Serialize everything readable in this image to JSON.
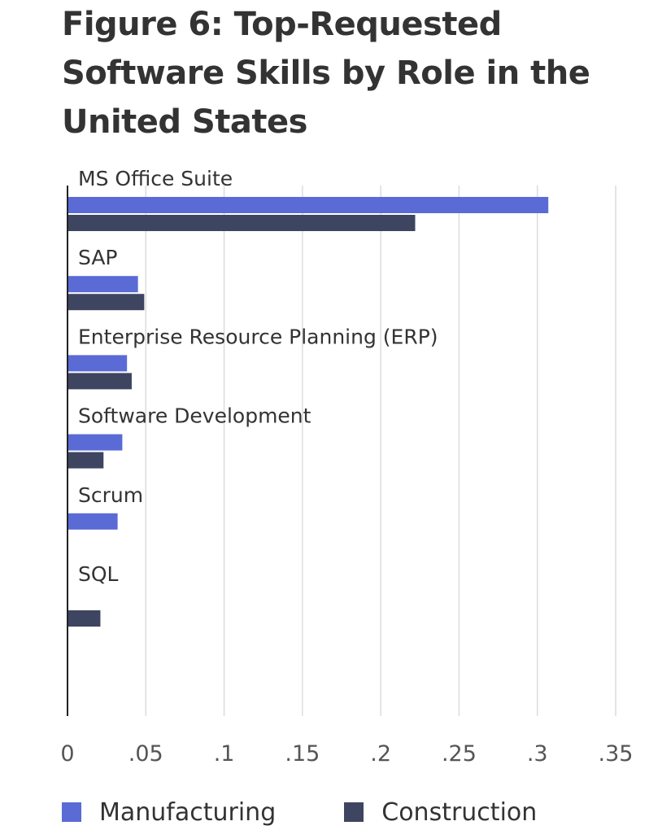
{
  "title": "Figure 6: Top-Requested Software Skills by Role in the United States",
  "chart_data": {
    "type": "bar",
    "orientation": "horizontal",
    "title": "Figure 6: Top-Requested Software Skills by Role in the United States",
    "categories": [
      "MS Office Suite",
      "SAP",
      "Enterprise Resource Planning (ERP)",
      "Software Development",
      "Scrum",
      "SQL"
    ],
    "series": [
      {
        "name": "Manufacturing",
        "color": "#5a6bd6",
        "values": [
          0.307,
          0.045,
          0.038,
          0.035,
          0.032,
          null
        ]
      },
      {
        "name": "Construction",
        "color": "#3e4561",
        "values": [
          0.222,
          0.049,
          0.041,
          0.023,
          null,
          0.021
        ]
      }
    ],
    "xlim": [
      0,
      0.35
    ],
    "xticks": [
      "0",
      ".05",
      ".1",
      ".15",
      ".2",
      ".25",
      ".3",
      ".35"
    ],
    "grid": true,
    "legend_position": "bottom-left",
    "xlabel": "",
    "ylabel": ""
  }
}
